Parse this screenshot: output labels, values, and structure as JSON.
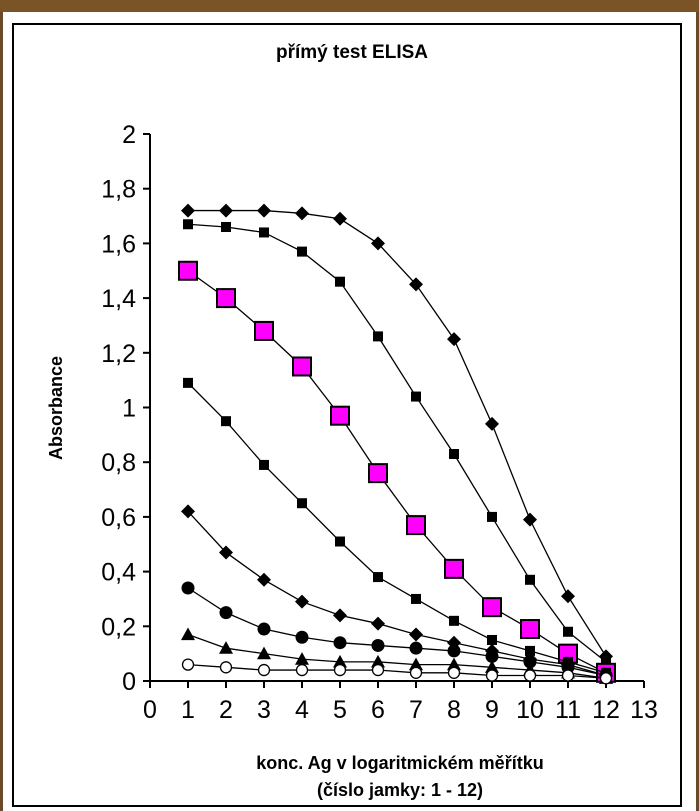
{
  "chart_data": {
    "type": "line",
    "title": "přímý test ELISA",
    "xlabel_line1": "konc. Ag v logaritmickém měřítku",
    "xlabel_line2": "(číslo jamky: 1 - 12)",
    "ylabel": "Absorbance",
    "xlim": [
      0,
      13
    ],
    "ylim": [
      0,
      2
    ],
    "x_ticks": [
      "0",
      "1",
      "2",
      "3",
      "4",
      "5",
      "6",
      "7",
      "8",
      "9",
      "10",
      "11",
      "12",
      "13"
    ],
    "y_ticks": [
      "0",
      "0,2",
      "0,4",
      "0,6",
      "0,8",
      "1",
      "1,2",
      "1,4",
      "1,6",
      "1,8",
      "2"
    ],
    "grid": false,
    "legend": "none",
    "x": [
      1,
      2,
      3,
      4,
      5,
      6,
      7,
      8,
      9,
      10,
      11,
      12
    ],
    "series": [
      {
        "marker": "diamond",
        "color": "#000000",
        "values": [
          1.72,
          1.72,
          1.72,
          1.71,
          1.69,
          1.6,
          1.45,
          1.25,
          0.94,
          0.59,
          0.31,
          0.09
        ]
      },
      {
        "marker": "square",
        "color": "#000000",
        "values": [
          1.67,
          1.66,
          1.64,
          1.57,
          1.46,
          1.26,
          1.04,
          0.83,
          0.6,
          0.37,
          0.18,
          0.07
        ]
      },
      {
        "marker": "square-large",
        "color": "#ff00ff",
        "values": [
          1.5,
          1.4,
          1.28,
          1.15,
          0.97,
          0.76,
          0.57,
          0.41,
          0.27,
          0.19,
          0.1,
          0.03
        ]
      },
      {
        "marker": "square",
        "color": "#000000",
        "values": [
          1.09,
          0.95,
          0.79,
          0.65,
          0.51,
          0.38,
          0.3,
          0.22,
          0.15,
          0.11,
          0.07,
          0.03
        ]
      },
      {
        "marker": "diamond",
        "color": "#000000",
        "values": [
          0.62,
          0.47,
          0.37,
          0.29,
          0.24,
          0.21,
          0.17,
          0.14,
          0.11,
          0.08,
          0.06,
          0.02
        ]
      },
      {
        "marker": "circle",
        "color": "#000000",
        "values": [
          0.34,
          0.25,
          0.19,
          0.16,
          0.14,
          0.13,
          0.12,
          0.11,
          0.09,
          0.07,
          0.05,
          0.02
        ]
      },
      {
        "marker": "triangle",
        "color": "#000000",
        "values": [
          0.17,
          0.12,
          0.1,
          0.08,
          0.07,
          0.07,
          0.06,
          0.06,
          0.05,
          0.04,
          0.03,
          0.01
        ]
      },
      {
        "marker": "circle-open",
        "color": "#000000",
        "values": [
          0.06,
          0.05,
          0.04,
          0.04,
          0.04,
          0.04,
          0.03,
          0.03,
          0.02,
          0.02,
          0.02,
          0.01
        ]
      }
    ]
  }
}
